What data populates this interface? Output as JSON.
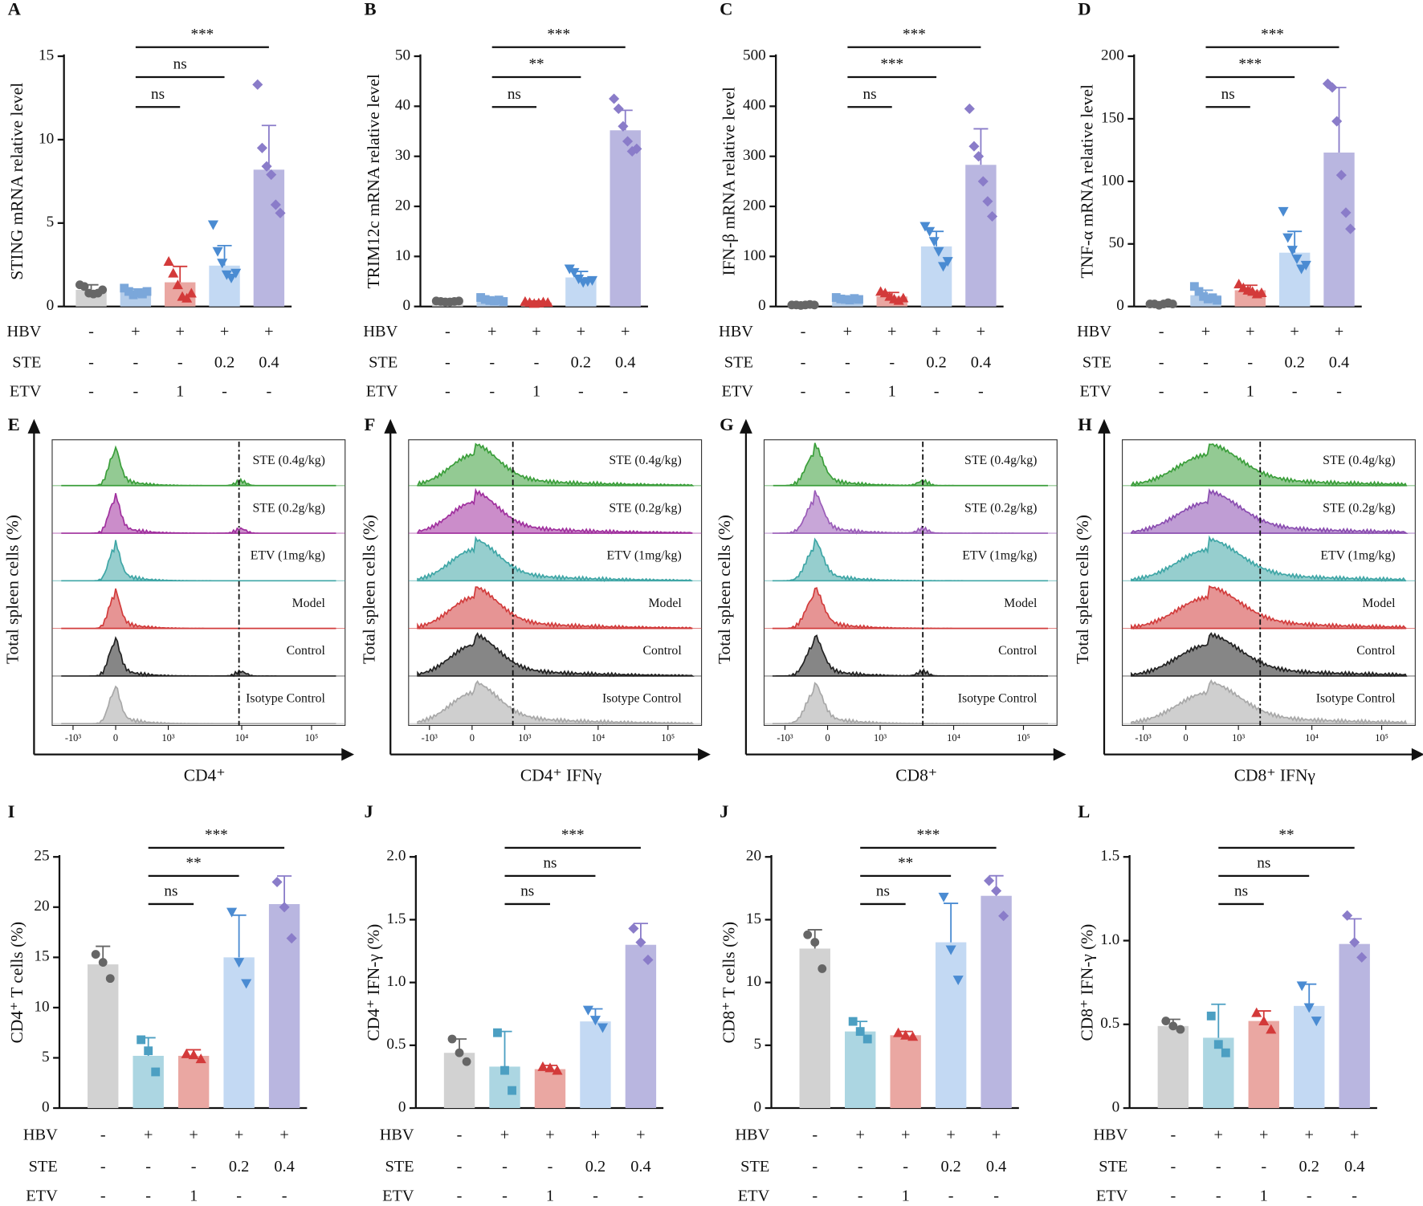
{
  "chart_data": [
    {
      "type": "bar",
      "panel": "A",
      "ylabel": "STING mRNA relative level",
      "ylim": [
        0,
        15
      ],
      "yticks": [
        0,
        5,
        10,
        15
      ],
      "values": [
        1.0,
        0.85,
        1.45,
        2.45,
        8.2
      ],
      "errors": [
        0.3,
        0.2,
        0.95,
        1.2,
        2.65
      ],
      "points": [
        [
          1.3,
          1.2,
          0.8,
          0.75,
          0.8,
          1.0
        ],
        [
          1.1,
          0.9,
          0.7,
          0.8,
          0.75,
          0.9
        ],
        [
          2.7,
          2.0,
          1.3,
          0.6,
          0.5,
          0.8
        ],
        [
          4.9,
          3.3,
          2.6,
          1.9,
          1.7,
          2.0
        ],
        [
          13.3,
          9.5,
          8.4,
          7.9,
          6.1,
          5.6
        ]
      ],
      "colors": [
        "#d2d2d2",
        "#b4cdea",
        "#eaa7a2",
        "#c3d9f3",
        "#b9b6e0"
      ],
      "point_colors": [
        "#666666",
        "#7ba7da",
        "#d33a3a",
        "#4a8bd2",
        "#8a7cc9"
      ],
      "markers": [
        "circle",
        "square",
        "triangle",
        "triangle-down",
        "diamond"
      ],
      "comparisons": [
        {
          "label": "ns",
          "groups": [
            1,
            2
          ]
        },
        {
          "label": "ns",
          "groups": [
            1,
            3
          ]
        },
        {
          "label": "***",
          "groups": [
            1,
            4
          ]
        }
      ],
      "conditions": [
        {
          "name": "HBV",
          "values": [
            "-",
            "+",
            "+",
            "+",
            "+"
          ]
        },
        {
          "name": "STE",
          "values": [
            "-",
            "-",
            "-",
            "0.2",
            "0.4"
          ]
        },
        {
          "name": "ETV",
          "values": [
            "-",
            "-",
            "1",
            "-",
            "-"
          ]
        }
      ]
    },
    {
      "type": "bar",
      "panel": "B",
      "ylabel": "TRIM12c mRNA relative level",
      "ylim": [
        0,
        50
      ],
      "yticks": [
        0,
        10,
        20,
        30,
        40,
        50
      ],
      "values": [
        1.0,
        1.3,
        0.8,
        5.8,
        35.2
      ],
      "errors": [
        0.2,
        0.3,
        0.3,
        1.2,
        4.0
      ],
      "points": [
        [
          1.1,
          1.0,
          0.9,
          0.9,
          1.0,
          1.1
        ],
        [
          1.8,
          1.4,
          1.2,
          1.1,
          1.3,
          1.0
        ],
        [
          1.0,
          0.8,
          0.6,
          0.7,
          0.9,
          0.8
        ],
        [
          7.5,
          6.8,
          5.5,
          4.8,
          5.0,
          5.2
        ],
        [
          41.5,
          39.5,
          36.0,
          33.0,
          31.0,
          31.5
        ]
      ],
      "colors": [
        "#d2d2d2",
        "#b4cdea",
        "#eaa7a2",
        "#c3d9f3",
        "#b9b6e0"
      ],
      "point_colors": [
        "#666666",
        "#7ba7da",
        "#d33a3a",
        "#4a8bd2",
        "#8a7cc9"
      ],
      "markers": [
        "circle",
        "square",
        "triangle",
        "triangle-down",
        "diamond"
      ],
      "comparisons": [
        {
          "label": "ns",
          "groups": [
            1,
            2
          ]
        },
        {
          "label": "**",
          "groups": [
            1,
            3
          ]
        },
        {
          "label": "***",
          "groups": [
            1,
            4
          ]
        }
      ],
      "conditions": [
        {
          "name": "HBV",
          "values": [
            "-",
            "+",
            "+",
            "+",
            "+"
          ]
        },
        {
          "name": "STE",
          "values": [
            "-",
            "-",
            "-",
            "0.2",
            "0.4"
          ]
        },
        {
          "name": "ETV",
          "values": [
            "-",
            "-",
            "1",
            "-",
            "-"
          ]
        }
      ]
    },
    {
      "type": "bar",
      "panel": "C",
      "ylabel": "IFN-β mRNA relative level",
      "ylim": [
        0,
        500
      ],
      "yticks": [
        0,
        100,
        200,
        300,
        400,
        500
      ],
      "values": [
        3,
        15,
        20,
        120,
        283
      ],
      "errors": [
        1,
        3,
        8,
        30,
        72
      ],
      "points": [
        [
          3,
          3,
          2,
          3,
          4,
          3
        ],
        [
          18,
          15,
          14,
          13,
          16,
          14
        ],
        [
          30,
          27,
          20,
          15,
          12,
          17
        ],
        [
          160,
          150,
          130,
          110,
          80,
          90
        ],
        [
          395,
          320,
          300,
          250,
          210,
          180
        ]
      ],
      "colors": [
        "#d2d2d2",
        "#b4cdea",
        "#eaa7a2",
        "#c3d9f3",
        "#b9b6e0"
      ],
      "point_colors": [
        "#666666",
        "#7ba7da",
        "#d33a3a",
        "#4a8bd2",
        "#8a7cc9"
      ],
      "markers": [
        "circle",
        "square",
        "triangle",
        "triangle-down",
        "diamond"
      ],
      "comparisons": [
        {
          "label": "ns",
          "groups": [
            1,
            2
          ]
        },
        {
          "label": "***",
          "groups": [
            1,
            3
          ]
        },
        {
          "label": "***",
          "groups": [
            1,
            4
          ]
        }
      ],
      "conditions": [
        {
          "name": "HBV",
          "values": [
            "-",
            "+",
            "+",
            "+",
            "+"
          ]
        },
        {
          "name": "STE",
          "values": [
            "-",
            "-",
            "-",
            "0.2",
            "0.4"
          ]
        },
        {
          "name": "ETV",
          "values": [
            "-",
            "-",
            "1",
            "-",
            "-"
          ]
        }
      ]
    },
    {
      "type": "bar",
      "panel": "D",
      "ylabel": "TNF-α mRNA relative level",
      "ylim": [
        0,
        200
      ],
      "yticks": [
        0,
        50,
        100,
        150,
        200
      ],
      "values": [
        2,
        9,
        13,
        43,
        123
      ],
      "errors": [
        1,
        4,
        4,
        17,
        52
      ],
      "points": [
        [
          2,
          2,
          1,
          2,
          3,
          2
        ],
        [
          16,
          12,
          8,
          6,
          7,
          5
        ],
        [
          18,
          15,
          13,
          12,
          10,
          11
        ],
        [
          76,
          55,
          45,
          38,
          30,
          33
        ],
        [
          178,
          175,
          148,
          105,
          75,
          62
        ]
      ],
      "colors": [
        "#d2d2d2",
        "#b4cdea",
        "#eaa7a2",
        "#c3d9f3",
        "#b9b6e0"
      ],
      "point_colors": [
        "#666666",
        "#7ba7da",
        "#d33a3a",
        "#4a8bd2",
        "#8a7cc9"
      ],
      "markers": [
        "circle",
        "square",
        "triangle",
        "triangle-down",
        "diamond"
      ],
      "comparisons": [
        {
          "label": "ns",
          "groups": [
            1,
            2
          ]
        },
        {
          "label": "***",
          "groups": [
            1,
            3
          ]
        },
        {
          "label": "***",
          "groups": [
            1,
            4
          ]
        }
      ],
      "conditions": [
        {
          "name": "HBV",
          "values": [
            "-",
            "+",
            "+",
            "+",
            "+"
          ]
        },
        {
          "name": "STE",
          "values": [
            "-",
            "-",
            "-",
            "0.2",
            "0.4"
          ]
        },
        {
          "name": "ETV",
          "values": [
            "-",
            "-",
            "1",
            "-",
            "-"
          ]
        }
      ]
    },
    {
      "type": "flow",
      "panel": "E",
      "ylabel": "Total spleen cells (%)",
      "xlabel": "CD4⁺",
      "rows": [
        "STE (0.4g/kg)",
        "STE (0.2g/kg)",
        "ETV (1mg/kg)",
        "Model",
        "Control",
        "Isotype Control"
      ],
      "colors": [
        "#3a9e3a",
        "#a0309e",
        "#3fa6a6",
        "#d23c3c",
        "#222222",
        "#a8a8a8"
      ],
      "x_tick_labels": [
        "-10³",
        "0",
        "10³",
        "10⁴",
        "10⁵"
      ]
    },
    {
      "type": "flow",
      "panel": "F",
      "ylabel": "Total spleen cells (%)",
      "xlabel": "CD4⁺ IFNγ",
      "rows": [
        "STE (0.4g/kg)",
        "STE (0.2g/kg)",
        "ETV (1mg/kg)",
        "Model",
        "Control",
        "Isotype Control"
      ],
      "colors": [
        "#3a9e3a",
        "#a0309e",
        "#3fa6a6",
        "#d23c3c",
        "#222222",
        "#a8a8a8"
      ],
      "x_tick_labels": [
        "-10³",
        "0",
        "10³",
        "10⁴",
        "10⁵"
      ]
    },
    {
      "type": "flow",
      "panel": "G",
      "ylabel": "Total spleen cells (%)",
      "xlabel": "CD8⁺",
      "rows": [
        "STE (0.4g/kg)",
        "STE (0.2g/kg)",
        "ETV (1mg/kg)",
        "Model",
        "Control",
        "Isotype Control"
      ],
      "colors": [
        "#3a9e3a",
        "#9a5cb8",
        "#3fa6a6",
        "#d23c3c",
        "#222222",
        "#a8a8a8"
      ],
      "x_tick_labels": [
        "-10³",
        "0",
        "10³",
        "10⁴",
        "10⁵"
      ]
    },
    {
      "type": "flow",
      "panel": "H",
      "ylabel": "Total spleen cells (%)",
      "xlabel": "CD8⁺ IFNγ",
      "rows": [
        "STE (0.4g/kg)",
        "STE (0.2g/kg)",
        "ETV (1mg/kg)",
        "Model",
        "Control",
        "Isotype Control"
      ],
      "colors": [
        "#3a9e3a",
        "#8a4cb0",
        "#3fa6a6",
        "#d23c3c",
        "#222222",
        "#a8a8a8"
      ],
      "x_tick_labels": [
        "-10³",
        "0",
        "10³",
        "10⁴",
        "10⁵"
      ]
    },
    {
      "type": "bar",
      "panel": "I",
      "ylabel": "CD4⁺ T cells (%)",
      "ylim": [
        0,
        25
      ],
      "yticks": [
        0,
        5,
        10,
        15,
        20,
        25
      ],
      "values": [
        14.3,
        5.2,
        5.2,
        15.0,
        20.3
      ],
      "errors": [
        1.8,
        1.8,
        0.6,
        4.2,
        2.8
      ],
      "points": [
        [
          15.3,
          14.5,
          12.9
        ],
        [
          6.8,
          5.7,
          3.6
        ],
        [
          5.4,
          5.3,
          4.9
        ],
        [
          19.5,
          14.5,
          12.4
        ],
        [
          22.5,
          20.0,
          16.9
        ]
      ],
      "colors": [
        "#d2d2d2",
        "#acd6e2",
        "#eaa7a2",
        "#c3d9f3",
        "#b9b6e0"
      ],
      "point_colors": [
        "#666666",
        "#4c9fc2",
        "#d33a3a",
        "#4a8bd2",
        "#8a7cc9"
      ],
      "markers": [
        "circle",
        "square",
        "triangle",
        "triangle-down",
        "diamond"
      ],
      "comparisons": [
        {
          "label": "ns",
          "groups": [
            1,
            2
          ]
        },
        {
          "label": "**",
          "groups": [
            1,
            3
          ]
        },
        {
          "label": "***",
          "groups": [
            1,
            4
          ]
        }
      ],
      "conditions": [
        {
          "name": "HBV",
          "values": [
            "-",
            "+",
            "+",
            "+",
            "+"
          ]
        },
        {
          "name": "STE",
          "values": [
            "-",
            "-",
            "-",
            "0.2",
            "0.4"
          ]
        },
        {
          "name": "ETV",
          "values": [
            "-",
            "-",
            "1",
            "-",
            "-"
          ]
        }
      ]
    },
    {
      "type": "bar",
      "panel": "J",
      "ylabel": "CD4⁺ IFN-γ (%)",
      "ylim": [
        0,
        2
      ],
      "yticks": [
        0,
        0.5,
        {
          "value": 1,
          "label": "1.0"
        },
        1.5,
        {
          "value": 2,
          "label": "2.0"
        }
      ],
      "values": [
        0.44,
        0.33,
        0.31,
        0.69,
        1.3
      ],
      "errors": [
        0.11,
        0.28,
        0.03,
        0.1,
        0.17
      ],
      "points": [
        [
          0.55,
          0.44,
          0.37
        ],
        [
          0.6,
          0.3,
          0.14
        ],
        [
          0.33,
          0.32,
          0.3
        ],
        [
          0.78,
          0.7,
          0.64
        ],
        [
          1.43,
          1.32,
          1.18
        ]
      ],
      "colors": [
        "#d2d2d2",
        "#acd6e2",
        "#eaa7a2",
        "#c3d9f3",
        "#b9b6e0"
      ],
      "point_colors": [
        "#666666",
        "#4c9fc2",
        "#d33a3a",
        "#4a8bd2",
        "#8a7cc9"
      ],
      "markers": [
        "circle",
        "square",
        "triangle",
        "triangle-down",
        "diamond"
      ],
      "comparisons": [
        {
          "label": "ns",
          "groups": [
            1,
            2
          ]
        },
        {
          "label": "ns",
          "groups": [
            1,
            3
          ]
        },
        {
          "label": "***",
          "groups": [
            1,
            4
          ]
        }
      ],
      "conditions": [
        {
          "name": "HBV",
          "values": [
            "-",
            "+",
            "+",
            "+",
            "+"
          ]
        },
        {
          "name": "STE",
          "values": [
            "-",
            "-",
            "-",
            "0.2",
            "0.4"
          ]
        },
        {
          "name": "ETV",
          "values": [
            "-",
            "-",
            "1",
            "-",
            "-"
          ]
        }
      ]
    },
    {
      "type": "bar",
      "panel": "J",
      "ylabel": "CD8⁺ T cells (%)",
      "ylim": [
        0,
        20
      ],
      "yticks": [
        0,
        5,
        10,
        15,
        20
      ],
      "values": [
        12.7,
        6.1,
        5.8,
        13.2,
        16.9
      ],
      "errors": [
        1.5,
        0.8,
        0.3,
        3.1,
        1.6
      ],
      "points": [
        [
          13.8,
          13.2,
          11.1
        ],
        [
          6.9,
          6.1,
          5.5
        ],
        [
          6.0,
          5.8,
          5.7
        ],
        [
          16.8,
          12.6,
          10.2
        ],
        [
          18.1,
          17.3,
          15.3
        ]
      ],
      "colors": [
        "#d2d2d2",
        "#acd6e2",
        "#eaa7a2",
        "#c3d9f3",
        "#b9b6e0"
      ],
      "point_colors": [
        "#666666",
        "#4c9fc2",
        "#d33a3a",
        "#4a8bd2",
        "#8a7cc9"
      ],
      "markers": [
        "circle",
        "square",
        "triangle",
        "triangle-down",
        "diamond"
      ],
      "comparisons": [
        {
          "label": "ns",
          "groups": [
            1,
            2
          ]
        },
        {
          "label": "**",
          "groups": [
            1,
            3
          ]
        },
        {
          "label": "***",
          "groups": [
            1,
            4
          ]
        }
      ],
      "conditions": [
        {
          "name": "HBV",
          "values": [
            "-",
            "+",
            "+",
            "+",
            "+"
          ]
        },
        {
          "name": "STE",
          "values": [
            "-",
            "-",
            "-",
            "0.2",
            "0.4"
          ]
        },
        {
          "name": "ETV",
          "values": [
            "-",
            "-",
            "1",
            "-",
            "-"
          ]
        }
      ]
    },
    {
      "type": "bar",
      "panel": "L",
      "ylabel": "CD8⁺ IFN-γ (%)",
      "ylim": [
        0,
        1.5
      ],
      "yticks": [
        0,
        0.5,
        {
          "value": 1,
          "label": "1.0"
        },
        1.5
      ],
      "values": [
        0.49,
        0.42,
        0.52,
        0.61,
        0.98
      ],
      "errors": [
        0.04,
        0.2,
        0.06,
        0.13,
        0.15
      ],
      "points": [
        [
          0.52,
          0.49,
          0.47
        ],
        [
          0.55,
          0.38,
          0.33
        ],
        [
          0.57,
          0.52,
          0.47
        ],
        [
          0.73,
          0.6,
          0.52
        ],
        [
          1.15,
          0.99,
          0.9
        ]
      ],
      "colors": [
        "#d2d2d2",
        "#acd6e2",
        "#eaa7a2",
        "#c3d9f3",
        "#b9b6e0"
      ],
      "point_colors": [
        "#666666",
        "#4c9fc2",
        "#d33a3a",
        "#4a8bd2",
        "#8a7cc9"
      ],
      "markers": [
        "circle",
        "square",
        "triangle",
        "triangle-down",
        "diamond"
      ],
      "comparisons": [
        {
          "label": "ns",
          "groups": [
            1,
            2
          ]
        },
        {
          "label": "ns",
          "groups": [
            1,
            3
          ]
        },
        {
          "label": "**",
          "groups": [
            1,
            4
          ]
        }
      ],
      "conditions": [
        {
          "name": "HBV",
          "values": [
            "-",
            "+",
            "+",
            "+",
            "+"
          ]
        },
        {
          "name": "STE",
          "values": [
            "-",
            "-",
            "-",
            "0.2",
            "0.4"
          ]
        },
        {
          "name": "ETV",
          "values": [
            "-",
            "-",
            "1",
            "-",
            "-"
          ]
        }
      ]
    }
  ]
}
